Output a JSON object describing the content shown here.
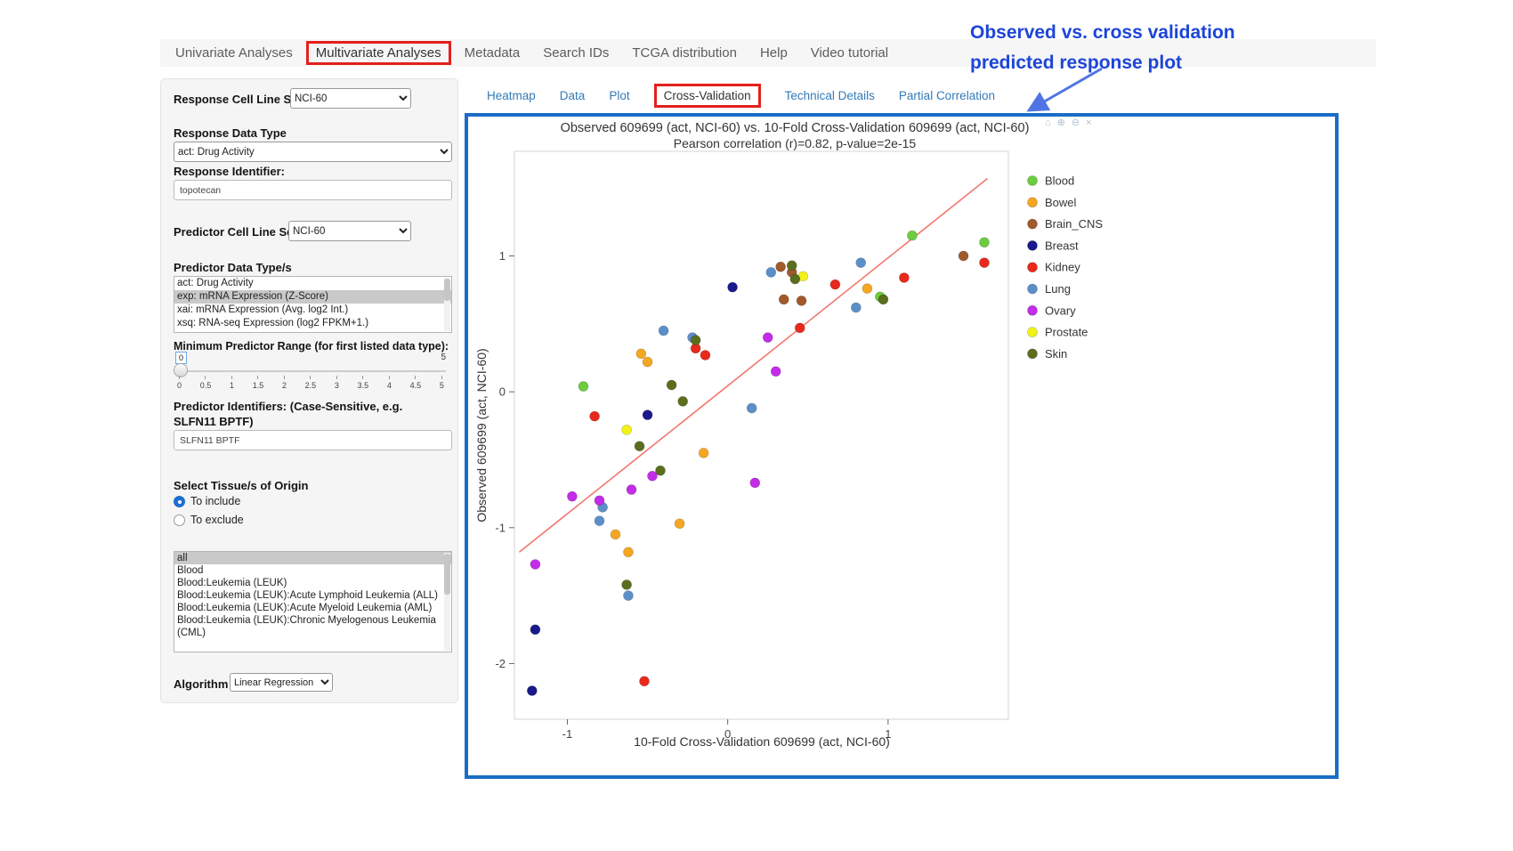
{
  "nav": {
    "tabs": [
      {
        "label": "Univariate Analyses",
        "active": false,
        "boxed": false
      },
      {
        "label": "Multivariate Analyses",
        "active": true,
        "boxed": true
      },
      {
        "label": "Metadata",
        "active": false,
        "boxed": false
      },
      {
        "label": "Search IDs",
        "active": false,
        "boxed": false
      },
      {
        "label": "TCGA distribution",
        "active": false,
        "boxed": false
      },
      {
        "label": "Help",
        "active": false,
        "boxed": false
      },
      {
        "label": "Video tutorial",
        "active": false,
        "boxed": false
      }
    ]
  },
  "annotation": {
    "line1": "Observed vs. cross validation",
    "line2": "predicted response plot",
    "color": "#1c45d8"
  },
  "sidebar": {
    "response_cell_line_set": {
      "label": "Response Cell Line Set",
      "value": "NCI-60"
    },
    "response_data_type": {
      "label": "Response Data Type",
      "value": "act: Drug Activity"
    },
    "response_identifier": {
      "label": "Response Identifier:",
      "value": "topotecan"
    },
    "predictor_cell_line_set": {
      "label": "Predictor Cell Line Set",
      "value": "NCI-60"
    },
    "predictor_data_types": {
      "label": "Predictor Data Type/s",
      "options": [
        "act: Drug Activity",
        "exp: mRNA Expression (Z-Score)",
        "xai: mRNA Expression (Avg. log2 Int.)",
        "xsq: RNA-seq Expression (log2 FPKM+1.)"
      ],
      "selected": "exp: mRNA Expression (Z-Score)"
    },
    "min_predictor_range": {
      "label": "Minimum Predictor Range (for first listed data type):",
      "value": "0",
      "max_label": "5",
      "ticks": [
        "0",
        "0.5",
        "1",
        "1.5",
        "2",
        "2.5",
        "3",
        "3.5",
        "4",
        "4.5",
        "5"
      ]
    },
    "predictor_identifiers": {
      "label": "Predictor Identifiers: (Case-Sensitive, e.g. SLFN11 BPTF)",
      "value": "SLFN11 BPTF"
    },
    "tissue_origin": {
      "label": "Select Tissue/s of Origin",
      "radios": [
        {
          "label": "To include",
          "checked": true
        },
        {
          "label": "To exclude",
          "checked": false
        }
      ]
    },
    "tissue_list": {
      "options": [
        "all",
        "Blood",
        "Blood:Leukemia (LEUK)",
        "Blood:Leukemia (LEUK):Acute Lymphoid Leukemia (ALL)",
        "Blood:Leukemia (LEUK):Acute Myeloid Leukemia (AML)",
        "Blood:Leukemia (LEUK):Chronic Myelogenous Leukemia (CML)"
      ],
      "selected": "all"
    },
    "algorithm": {
      "label": "Algorithm",
      "value": "Linear Regression"
    }
  },
  "main": {
    "subtabs": [
      {
        "label": "Heatmap",
        "active": false,
        "boxed": false
      },
      {
        "label": "Data",
        "active": false,
        "boxed": false
      },
      {
        "label": "Plot",
        "active": false,
        "boxed": false
      },
      {
        "label": "Cross-Validation",
        "active": true,
        "boxed": true
      },
      {
        "label": "Technical Details",
        "active": false,
        "boxed": false
      },
      {
        "label": "Partial Correlation",
        "active": false,
        "boxed": false
      }
    ],
    "modebar_icons": [
      {
        "name": "home-icon",
        "glyph": "⌂"
      },
      {
        "name": "zoom-in-icon",
        "glyph": "⊕"
      },
      {
        "name": "zoom-out-icon",
        "glyph": "⊖"
      },
      {
        "name": "close-icon",
        "glyph": "×"
      }
    ]
  },
  "chart_data": {
    "type": "scatter",
    "title": "Observed 609699 (act, NCI-60) vs. 10-Fold Cross-Validation 609699 (act, NCI-60)",
    "subtitle": "Pearson correlation (r)=0.82, p-value=2e-15",
    "xlabel": "10-Fold Cross-Validation 609699 (act, NCI-60)",
    "ylabel": "Observed 609699 (act, NCI-60)",
    "xlim": [
      -1.33,
      1.75
    ],
    "ylim": [
      -2.41,
      1.77
    ],
    "xticks": [
      -1,
      0,
      1
    ],
    "yticks": [
      -2,
      -1,
      0,
      1
    ],
    "grid": false,
    "legend_position": "right",
    "regression_line": {
      "color": "#f4766e",
      "x1": -1.3,
      "y1": -1.18,
      "x2": 1.62,
      "y2": 1.57
    },
    "series": [
      {
        "name": "Blood",
        "color": "#6dcc3f",
        "points": [
          [
            -0.9,
            0.04
          ],
          [
            0.95,
            0.7
          ],
          [
            1.15,
            1.15
          ],
          [
            1.6,
            1.1
          ]
        ]
      },
      {
        "name": "Bowel",
        "color": "#f5a623",
        "points": [
          [
            -0.54,
            0.28
          ],
          [
            -0.5,
            0.22
          ],
          [
            -0.15,
            -0.45
          ],
          [
            -0.3,
            -0.97
          ],
          [
            -0.7,
            -1.05
          ],
          [
            -0.62,
            -1.18
          ],
          [
            0.87,
            0.76
          ]
        ]
      },
      {
        "name": "Brain_CNS",
        "color": "#a05a2c",
        "points": [
          [
            0.33,
            0.92
          ],
          [
            0.35,
            0.68
          ],
          [
            0.46,
            0.67
          ],
          [
            1.47,
            1.0
          ],
          [
            0.4,
            0.88
          ]
        ]
      },
      {
        "name": "Breast",
        "color": "#1a1a8c",
        "points": [
          [
            0.03,
            0.77
          ],
          [
            -0.5,
            -0.17
          ],
          [
            -1.2,
            -1.75
          ],
          [
            -1.22,
            -2.2
          ]
        ]
      },
      {
        "name": "Kidney",
        "color": "#e8291c",
        "points": [
          [
            -0.83,
            -0.18
          ],
          [
            -0.2,
            0.32
          ],
          [
            -0.14,
            0.27
          ],
          [
            0.45,
            0.47
          ],
          [
            0.67,
            0.79
          ],
          [
            1.1,
            0.84
          ],
          [
            1.6,
            0.95
          ],
          [
            -0.52,
            -2.13
          ]
        ]
      },
      {
        "name": "Lung",
        "color": "#5b8fc8",
        "points": [
          [
            -0.4,
            0.45
          ],
          [
            -0.22,
            0.4
          ],
          [
            0.27,
            0.88
          ],
          [
            0.83,
            0.95
          ],
          [
            0.8,
            0.62
          ],
          [
            0.15,
            -0.12
          ],
          [
            -0.78,
            -0.85
          ],
          [
            -0.8,
            -0.95
          ],
          [
            -0.62,
            -1.5
          ]
        ]
      },
      {
        "name": "Ovary",
        "color": "#c32ce8",
        "points": [
          [
            -1.2,
            -1.27
          ],
          [
            -0.97,
            -0.77
          ],
          [
            -0.8,
            -0.8
          ],
          [
            -0.6,
            -0.72
          ],
          [
            -0.47,
            -0.62
          ],
          [
            0.25,
            0.4
          ],
          [
            0.3,
            0.15
          ],
          [
            0.17,
            -0.67
          ]
        ]
      },
      {
        "name": "Prostate",
        "color": "#f2f218",
        "points": [
          [
            -0.63,
            -0.28
          ],
          [
            0.47,
            0.85
          ]
        ]
      },
      {
        "name": "Skin",
        "color": "#5a6e1e",
        "points": [
          [
            -0.2,
            0.38
          ],
          [
            -0.28,
            -0.07
          ],
          [
            -0.55,
            -0.4
          ],
          [
            -0.42,
            -0.58
          ],
          [
            -0.63,
            -1.42
          ],
          [
            0.4,
            0.93
          ],
          [
            0.42,
            0.83
          ],
          [
            0.97,
            0.68
          ],
          [
            -0.35,
            0.05
          ]
        ]
      }
    ]
  }
}
